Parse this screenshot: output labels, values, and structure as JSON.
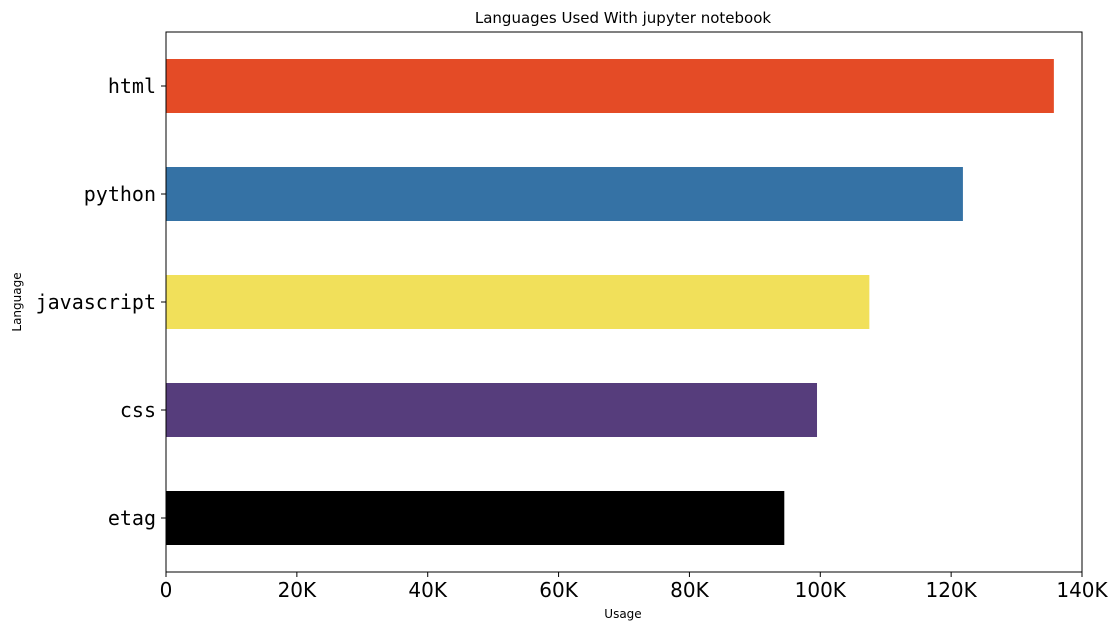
{
  "chart_data": {
    "type": "bar",
    "orientation": "horizontal",
    "title": "Languages Used With jupyter notebook",
    "xlabel": "Usage",
    "ylabel": "Language",
    "categories": [
      "html",
      "python",
      "javascript",
      "css",
      "etag"
    ],
    "values": [
      135700,
      121800,
      107500,
      99500,
      94500
    ],
    "colors": [
      "#e44b26",
      "#3572a5",
      "#f1e05a",
      "#563d7c",
      "#000000"
    ],
    "xlim": [
      0,
      140000
    ],
    "xticks": [
      0,
      20000,
      40000,
      60000,
      80000,
      100000,
      120000,
      140000
    ],
    "xtick_labels": [
      "0",
      "20K",
      "40K",
      "60K",
      "80K",
      "100K",
      "120K",
      "140K"
    ],
    "grid": false,
    "legend": "none"
  }
}
